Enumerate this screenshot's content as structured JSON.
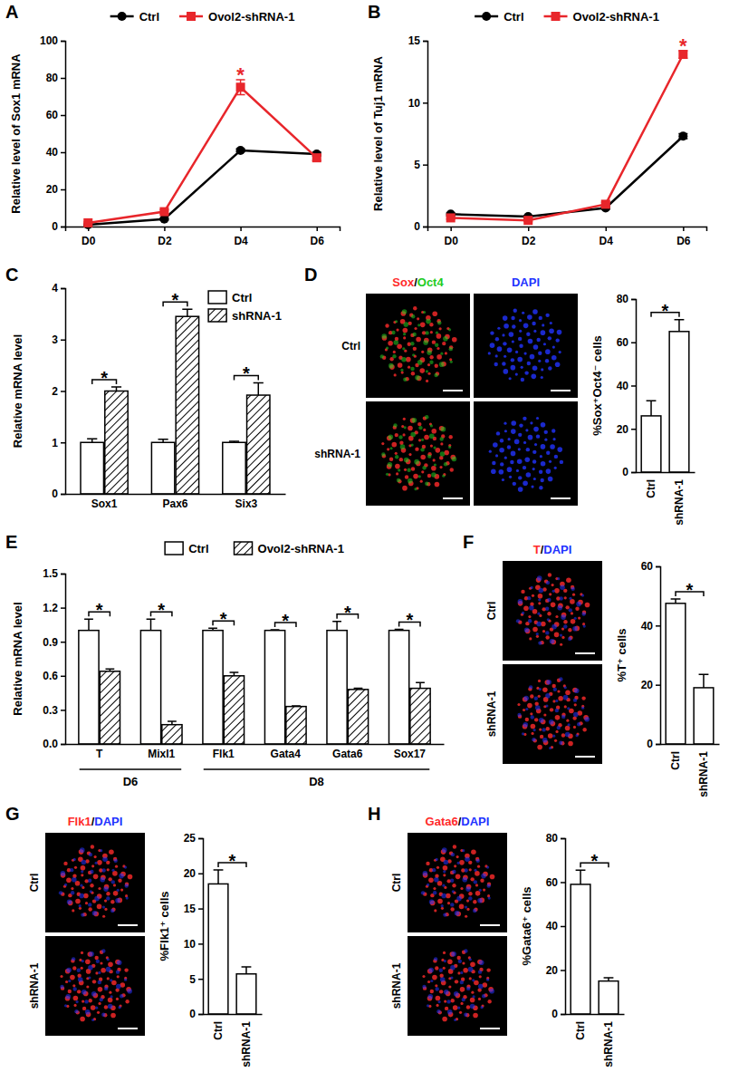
{
  "chart_data": [
    {
      "panel": "A",
      "type": "line",
      "categories": [
        "D0",
        "D2",
        "D4",
        "D6"
      ],
      "ylabel": "Relative level of Sox1 mRNA",
      "ylim": [
        0,
        100
      ],
      "yticks": [
        0,
        20,
        40,
        60,
        80,
        100
      ],
      "legend": "top",
      "series": [
        {
          "name": "Ctrl",
          "color": "#000000",
          "marker": "circle",
          "values": [
            1,
            4,
            41,
            39
          ],
          "errors": [
            0.3,
            0.5,
            0.8,
            1
          ]
        },
        {
          "name": "Ovol2-shRNA-1",
          "color": "#e8262b",
          "marker": "square",
          "values": [
            2,
            8,
            75,
            37
          ],
          "errors": [
            0.5,
            1,
            4,
            1.5
          ]
        }
      ],
      "annotations": [
        {
          "text": "*",
          "series": 1,
          "index": 2
        }
      ]
    },
    {
      "panel": "B",
      "type": "line",
      "categories": [
        "D0",
        "D2",
        "D4",
        "D6"
      ],
      "ylabel": "Relative level of Tuj1 mRNA",
      "ylim": [
        0,
        15
      ],
      "yticks": [
        0,
        5,
        10,
        15
      ],
      "legend": "top",
      "series": [
        {
          "name": "Ctrl",
          "color": "#000000",
          "marker": "circle",
          "values": [
            1,
            0.8,
            1.5,
            7.3
          ],
          "errors": [
            0.1,
            0.1,
            0.1,
            0.2
          ]
        },
        {
          "name": "Ovol2-shRNA-1",
          "color": "#e8262b",
          "marker": "square",
          "values": [
            0.7,
            0.5,
            1.8,
            13.9
          ],
          "errors": [
            0.1,
            0.1,
            0.15,
            0.3
          ]
        }
      ],
      "annotations": [
        {
          "text": "*",
          "series": 1,
          "index": 3
        }
      ]
    },
    {
      "panel": "C",
      "type": "bar",
      "categories": [
        "Sox1",
        "Pax6",
        "Six3"
      ],
      "ylabel": "Relative mRNA level",
      "ylim": [
        0,
        4
      ],
      "yticks": [
        0,
        1,
        2,
        3,
        4
      ],
      "legend": "top right",
      "series": [
        {
          "name": "Ctrl",
          "color": "#ffffff",
          "values": [
            1,
            1,
            1
          ],
          "errors": [
            0.07,
            0.06,
            0.02
          ]
        },
        {
          "name": "shRNA-1",
          "color": "#ffffff",
          "values": [
            2.0,
            3.45,
            1.92
          ],
          "errors": [
            0.08,
            0.14,
            0.24
          ]
        }
      ],
      "annotations": [
        {
          "text": "*",
          "index": 0
        },
        {
          "text": "*",
          "index": 1
        },
        {
          "text": "*",
          "index": 2
        }
      ]
    },
    {
      "panel": "D",
      "type": "bar",
      "categories": [
        "Ctrl",
        "shRNA-1"
      ],
      "values": [
        26,
        65
      ],
      "errors": [
        7,
        5.5
      ],
      "color": "#ffffff",
      "ylabel": "%Sox⁺Oct4⁻ cells",
      "ylim": [
        0,
        80
      ],
      "yticks": [
        0,
        20,
        40,
        60,
        80
      ],
      "annotations": [
        {
          "text": "*"
        }
      ],
      "images": {
        "rows": [
          "Ctrl",
          "shRNA-1"
        ],
        "columns": [
          {
            "parts": [
              "Sox",
              "/",
              "Oct4"
            ],
            "colors": [
              "#ff2a2a",
              "#000000",
              "#22cc22"
            ]
          },
          {
            "parts": [
              "DAPI"
            ],
            "colors": [
              "#2233ff"
            ]
          }
        ]
      }
    },
    {
      "panel": "E",
      "type": "bar",
      "categories": [
        "T",
        "Mixl1",
        "Flk1",
        "Gata4",
        "Gata6",
        "Sox17"
      ],
      "group_labels": [
        "D6",
        "D6",
        "D8",
        "D8",
        "D8",
        "D8"
      ],
      "ylabel": "Relative mRNA level",
      "ylim": [
        0,
        1.5
      ],
      "yticks": [
        {
          "value": 0,
          "label": "0.0"
        },
        0.3,
        0.6,
        0.9,
        1.2,
        1.5
      ],
      "legend": "top",
      "series": [
        {
          "name": "Ctrl",
          "color": "#ffffff",
          "values": [
            1,
            1,
            1,
            1,
            1,
            1
          ],
          "errors": [
            0.1,
            0.1,
            0.02,
            0.005,
            0.08,
            0.01
          ]
        },
        {
          "name": "Ovol2-shRNA-1",
          "color": "#ffffff",
          "values": [
            0.64,
            0.17,
            0.6,
            0.33,
            0.48,
            0.49
          ],
          "errors": [
            0.02,
            0.03,
            0.03,
            0.005,
            0.01,
            0.05
          ]
        }
      ],
      "annotations": [
        {
          "text": "*",
          "index": 0
        },
        {
          "text": "*",
          "index": 1
        },
        {
          "text": "*",
          "index": 2
        },
        {
          "text": "*",
          "index": 3
        },
        {
          "text": "*",
          "index": 4
        },
        {
          "text": "*",
          "index": 5
        }
      ]
    },
    {
      "panel": "F",
      "type": "bar",
      "categories": [
        "Ctrl",
        "shRNA-1"
      ],
      "values": [
        47.5,
        19
      ],
      "errors": [
        1.5,
        4.5
      ],
      "color": "#ffffff",
      "ylabel": "%T⁺ cells",
      "ylim": [
        0,
        60
      ],
      "yticks": [
        0,
        20,
        40,
        60
      ],
      "annotations": [
        {
          "text": "*"
        }
      ],
      "images": {
        "rows": [
          "Ctrl",
          "shRNA-1"
        ],
        "columns": [
          {
            "parts": [
              "T",
              "/",
              "DAPI"
            ],
            "colors": [
              "#ff2a2a",
              "#000000",
              "#2233ff"
            ]
          }
        ]
      }
    },
    {
      "panel": "G",
      "type": "bar",
      "categories": [
        "Ctrl",
        "shRNA-1"
      ],
      "values": [
        18.5,
        5.7
      ],
      "errors": [
        2,
        1
      ],
      "color": "#ffffff",
      "ylabel": "%Flk1⁺ cells",
      "ylim": [
        0,
        25
      ],
      "yticks": [
        0,
        5,
        10,
        15,
        20,
        25
      ],
      "annotations": [
        {
          "text": "*"
        }
      ],
      "images": {
        "rows": [
          "Ctrl",
          "shRNA-1"
        ],
        "columns": [
          {
            "parts": [
              "Flk1",
              "/",
              "DAPI"
            ],
            "colors": [
              "#ff2a2a",
              "#000000",
              "#2233ff"
            ]
          }
        ]
      }
    },
    {
      "panel": "H",
      "type": "bar",
      "categories": [
        "Ctrl",
        "shRNA-1"
      ],
      "values": [
        59,
        15
      ],
      "errors": [
        6.5,
        1.5
      ],
      "color": "#ffffff",
      "ylabel": "%Gata6⁺ cells",
      "ylim": [
        0,
        80
      ],
      "yticks": [
        0,
        20,
        40,
        60,
        80
      ],
      "annotations": [
        {
          "text": "*"
        }
      ],
      "images": {
        "rows": [
          "Ctrl",
          "shRNA-1"
        ],
        "columns": [
          {
            "parts": [
              "Gata6",
              "/",
              "DAPI"
            ],
            "colors": [
              "#ff2a2a",
              "#000000",
              "#2233ff"
            ]
          }
        ]
      }
    }
  ]
}
